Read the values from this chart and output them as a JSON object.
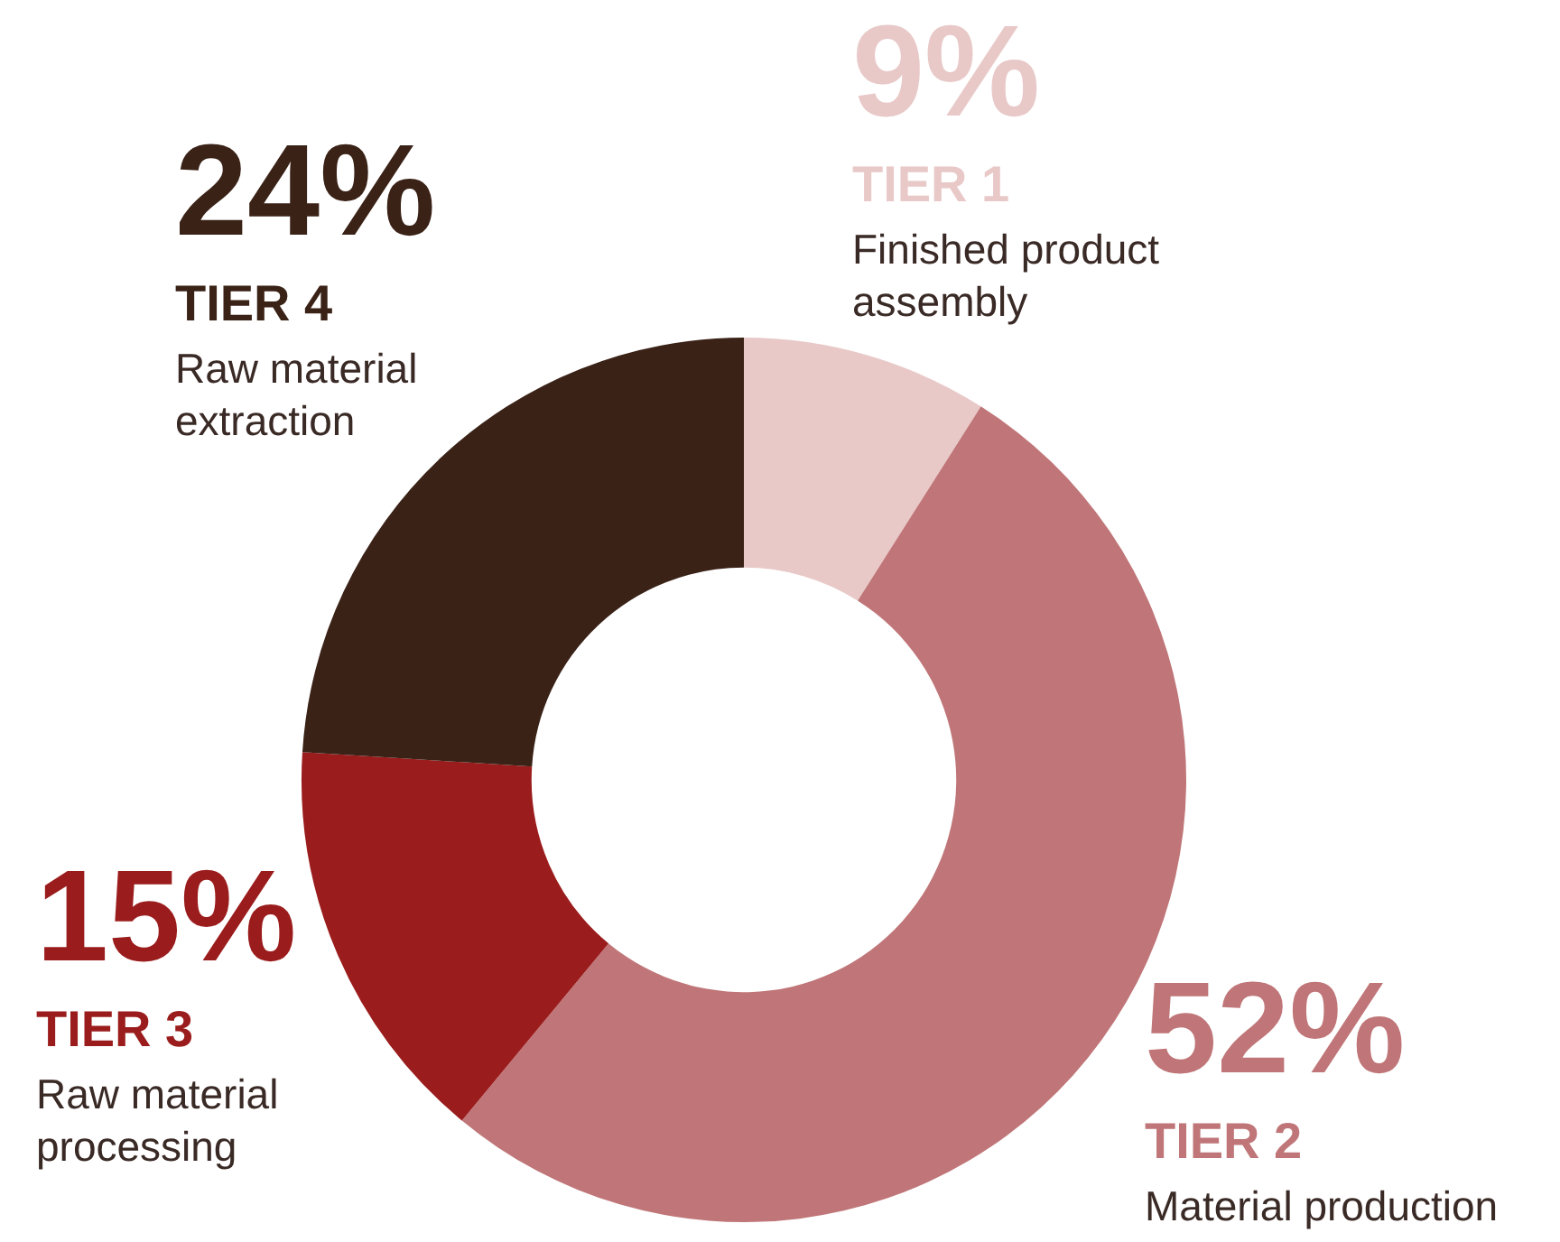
{
  "chart_data": {
    "type": "donut",
    "categories": [
      "TIER 1",
      "TIER 2",
      "TIER 3",
      "TIER 4"
    ],
    "values": [
      9,
      52,
      15,
      24
    ],
    "value_labels": [
      "9%",
      "52%",
      "15%",
      "24%"
    ],
    "colors": [
      "#e8c9c8",
      "#c07678",
      "#9b1c1c",
      "#3a2217"
    ],
    "annotations": [
      "Finished product assembly",
      "Material production",
      "Raw material processing",
      "Raw material extraction"
    ]
  }
}
